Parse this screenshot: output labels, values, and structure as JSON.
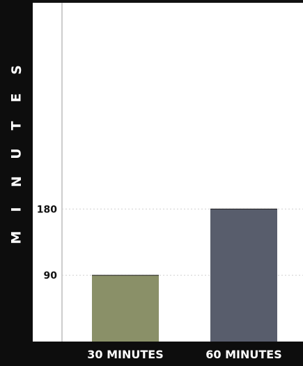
{
  "chart_data": {
    "type": "bar",
    "ylabel": "MINUTES",
    "xlabel": "",
    "title": "",
    "categories": [
      "30 MINUTES",
      "60 MINUTES"
    ],
    "values": [
      90,
      180
    ],
    "yticks": [
      90,
      180
    ],
    "ylim": [
      0,
      390
    ],
    "grid": "dotted horizontal lines at tick values",
    "colors": [
      "#8a9068",
      "#585d6c"
    ]
  }
}
